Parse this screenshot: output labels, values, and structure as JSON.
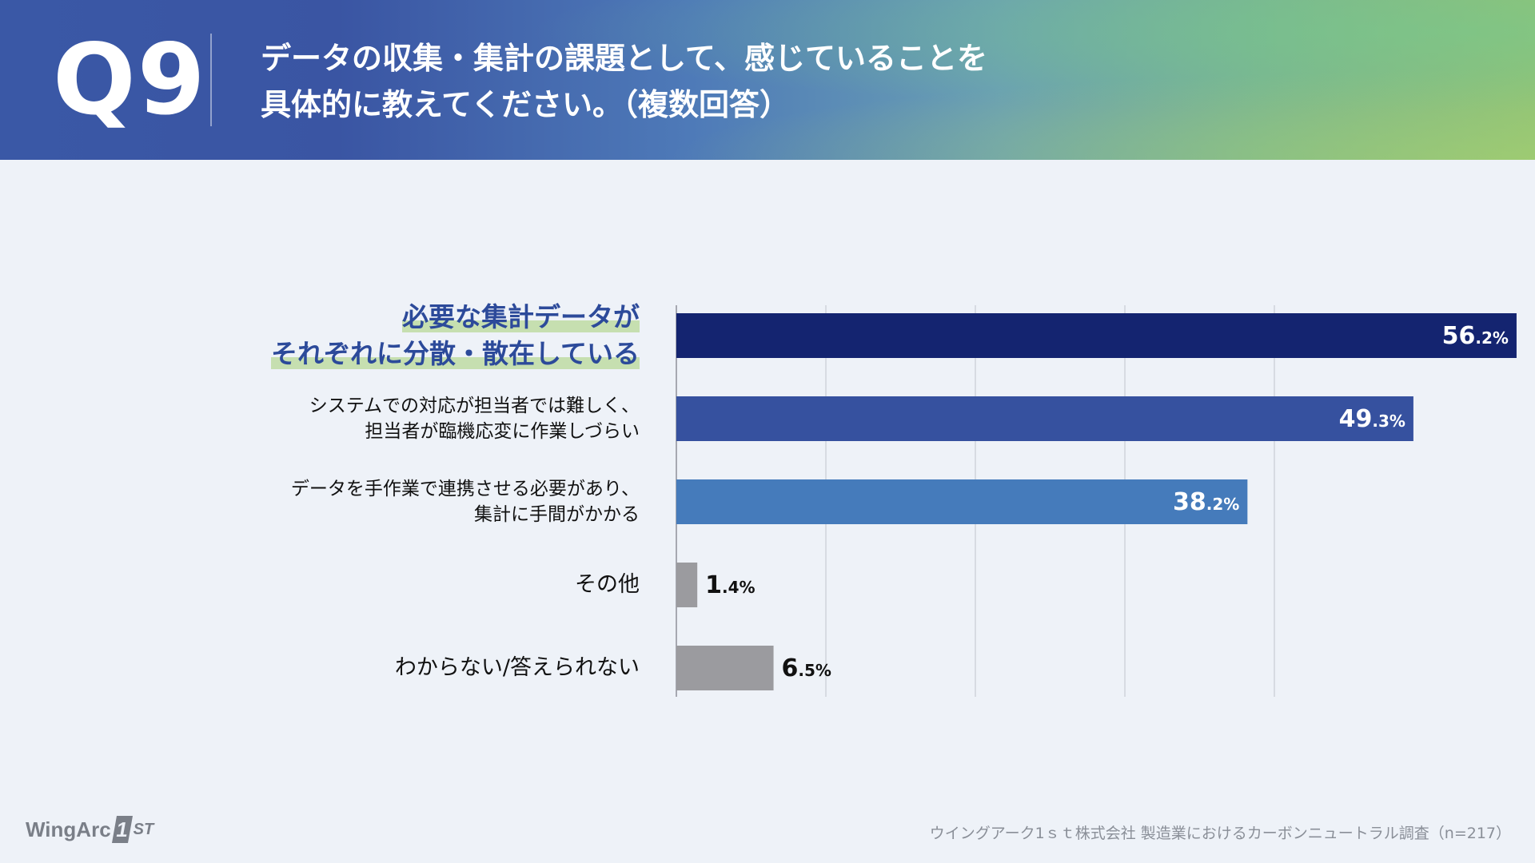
{
  "header": {
    "q_number": "Q9",
    "question_line1": "データの収集・集計の課題として、感じていることを",
    "question_line2": "具体的に教えてください。（複数回答）"
  },
  "chart_data": {
    "type": "bar",
    "orientation": "horizontal",
    "unit": "%",
    "xlim": [
      0,
      100
    ],
    "grid": true,
    "categories": [
      {
        "lines": [
          "必要な集計データが",
          "それぞれに分散・散在している"
        ],
        "highlight": true
      },
      {
        "lines": [
          "システムでの対応が担当者では難しく、",
          "担当者が臨機応変に作業しづらい"
        ],
        "highlight": false
      },
      {
        "lines": [
          "データを手作業で連携させる必要があり、",
          "集計に手間がかかる"
        ],
        "highlight": false
      },
      {
        "lines": [
          "その他"
        ],
        "highlight": false
      },
      {
        "lines": [
          "わからない/答えられない"
        ],
        "highlight": false
      }
    ],
    "values": [
      56.2,
      49.3,
      38.2,
      1.4,
      6.5
    ],
    "value_labels": [
      {
        "int": "56",
        "dec": ".2%"
      },
      {
        "int": "49",
        "dec": ".3%"
      },
      {
        "int": "38",
        "dec": ".2%"
      },
      {
        "int": "1",
        "dec": ".4%"
      },
      {
        "int": "6",
        "dec": ".5%"
      }
    ],
    "bar_colors": [
      "#142470",
      "#36519f",
      "#457bbb",
      "#9b9b9f",
      "#9b9b9f"
    ],
    "label_inside": [
      true,
      true,
      true,
      false,
      false
    ]
  },
  "footer": {
    "logo_text": "WingArc",
    "logo_one": "1",
    "logo_st": "ST",
    "source": "ウイングアーク1ｓｔ株式会社  製造業におけるカーボンニュートラル調査（n=217）"
  },
  "colors": {
    "grid": "#cfd3da",
    "axis": "#8d9099",
    "inside_label": "#ffffff",
    "outside_label": "#111111"
  }
}
